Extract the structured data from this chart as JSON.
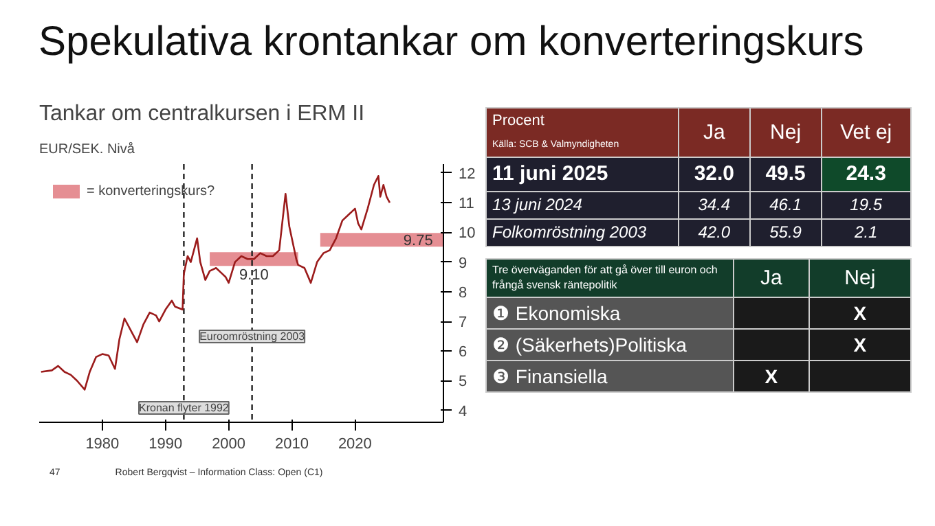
{
  "chart_data": [
    {
      "type": "other",
      "title": "Spekulativa krontankar om konverteringskurs",
      "annotations": [
        "47",
        "Robert Bergqvist – Information Class: Open (C1)"
      ]
    },
    {
      "type": "line",
      "title": "Tankar om centralkursen i ERM II",
      "subtitle": "EUR/SEK. Nivå",
      "xlim": [
        1970,
        2034
      ],
      "ylim": [
        3.6,
        12.3
      ],
      "xticks": [
        1980,
        1990,
        2000,
        2010,
        2020
      ],
      "yticks": [
        4,
        5,
        6,
        7,
        8,
        9,
        10,
        11,
        12
      ],
      "grid": false,
      "legend": "top left",
      "series": [
        {
          "type": "line",
          "color": "#9b1b1b",
          "x": [
            1970.3,
            1972,
            1973,
            1974,
            1975,
            1976,
            1977.2,
            1978,
            1979,
            1980,
            1981,
            1982,
            1982.7,
            1983.5,
            1984.5,
            1985.5,
            1986.5,
            1987.5,
            1988.5,
            1989,
            1990,
            1991,
            1991.5,
            1992.7,
            1992.9,
            1993.5,
            1994,
            1995,
            1995.5,
            1996.3,
            1997,
            1998,
            1999,
            1999.5,
            2000,
            2001,
            2002,
            2003,
            2004,
            2005,
            2006,
            2007,
            2008,
            2009,
            2009.6,
            2010,
            2010.7,
            2011,
            2012,
            2013,
            2014,
            2015,
            2016,
            2017,
            2018,
            2019,
            2020,
            2020.5,
            2021,
            2022,
            2023,
            2023.7,
            2024,
            2024.5,
            2025,
            2025.5
          ],
          "values": [
            5.3,
            5.35,
            5.5,
            5.3,
            5.2,
            5.0,
            4.7,
            5.3,
            5.8,
            5.9,
            5.85,
            5.4,
            6.4,
            7.1,
            6.7,
            6.3,
            6.9,
            7.3,
            7.2,
            7.0,
            7.4,
            7.7,
            7.5,
            7.4,
            8.6,
            9.2,
            9.0,
            9.8,
            9.0,
            8.4,
            8.7,
            8.8,
            8.6,
            8.5,
            8.3,
            9.0,
            9.2,
            9.1,
            9.1,
            9.3,
            9.2,
            9.2,
            9.4,
            11.3,
            10.2,
            9.8,
            9.1,
            8.9,
            8.8,
            8.3,
            9.0,
            9.3,
            9.4,
            9.8,
            10.4,
            10.6,
            10.8,
            10.3,
            10.1,
            10.8,
            11.6,
            11.9,
            11.2,
            11.6,
            11.2,
            11.0
          ]
        },
        {
          "type": "line",
          "name": "= konverteringskurs?",
          "color": "#e07a80",
          "x": [
            1997,
            2011
          ],
          "values": [
            9.1,
            9.1
          ]
        },
        {
          "type": "line",
          "color": "#e07a80",
          "x": [
            2014.5,
            2034
          ],
          "values": [
            9.75,
            9.75
          ]
        }
      ],
      "ref_lines": [
        {
          "axis": "x",
          "value": 1992.9,
          "label": "Kronan flyter 1992",
          "line_style": "dashed"
        },
        {
          "axis": "x",
          "value": 2003.7,
          "label": "Euroomröstning 2003",
          "line_style": "dashed"
        }
      ],
      "annotations": [
        {
          "text": "9.10",
          "x": 2004,
          "y": 8.6
        },
        {
          "text": "9.75",
          "x": 2030,
          "y": 9.75
        }
      ]
    },
    {
      "type": "other",
      "title": "Procent",
      "subtitle": "Källa: SCB & Valmyndigheten",
      "categories": [
        "Ja",
        "Nej",
        "Vet ej"
      ],
      "series": [
        {
          "name": "11 juni 2025",
          "colors": [
            "#1f1f2e",
            "#1f1f2e",
            "#0f4a2a"
          ],
          "values": [
            32.0,
            49.5,
            24.3
          ],
          "value_labels": [
            "32.0",
            "49.5",
            "24.3"
          ]
        },
        {
          "name": "13 juni 2024",
          "values": [
            34.4,
            46.1,
            19.5
          ],
          "value_labels": [
            "34.4",
            "46.1",
            "19.5"
          ]
        },
        {
          "name": "Folkomröstning 2003",
          "values": [
            42.0,
            55.9,
            2.1
          ],
          "value_labels": [
            "42.0",
            "55.9",
            "2.1"
          ]
        }
      ]
    },
    {
      "type": "other",
      "title": "Tre överväganden för att gå över till euron och frångå svensk räntepolitik",
      "categories": [
        "Ja",
        "Nej"
      ],
      "y_categories": [
        "❶ Ekonomiska",
        "❷ (Säkerhets)Politiska",
        "❸ Finansiella"
      ],
      "cell_labels": [
        [
          null,
          "X"
        ],
        [
          null,
          "X"
        ],
        [
          "X",
          null
        ]
      ]
    }
  ]
}
